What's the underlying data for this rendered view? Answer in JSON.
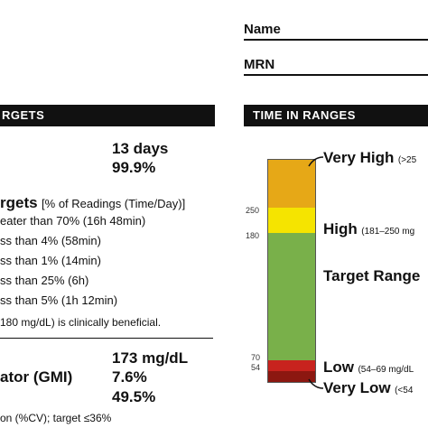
{
  "header": {
    "name_label": "Name",
    "mrn_label": "MRN"
  },
  "left": {
    "section_title": "RGETS",
    "days": "13 days",
    "percent": "99.9%",
    "targets_title": "rgets",
    "targets_sub": "[% of Readings (Time/Day)]",
    "rows": [
      "eater than 70% (16h 48min)",
      "ss than 4% (58min)",
      "ss than 1% (14min)",
      "ss than 25% (6h)",
      "ss than 5% (1h 12min)"
    ],
    "note": "180 mg/dL) is clinically beneficial.",
    "glucose": "173 mg/dL",
    "gmi_label": "ator (GMI)",
    "gmi": "7.6%",
    "cv": "49.5%",
    "cv_note": "on (%CV); target ≤36%"
  },
  "right": {
    "section_title": "TIME IN RANGES",
    "ticks": [
      "250",
      "180",
      "70",
      "54"
    ],
    "ranges": {
      "very_high": "Very High",
      "very_high_sub": "(>25",
      "high": "High",
      "high_sub": "(181–250 mg",
      "target": "Target Range",
      "low": "Low",
      "low_sub": "(54–69 mg/dL",
      "very_low": "Very Low",
      "very_low_sub": "(<54"
    },
    "colors": {
      "very_high": "#e6a817",
      "high": "#f5e400",
      "target": "#79b04a",
      "low": "#c8231e",
      "very_low": "#8c1710"
    }
  }
}
